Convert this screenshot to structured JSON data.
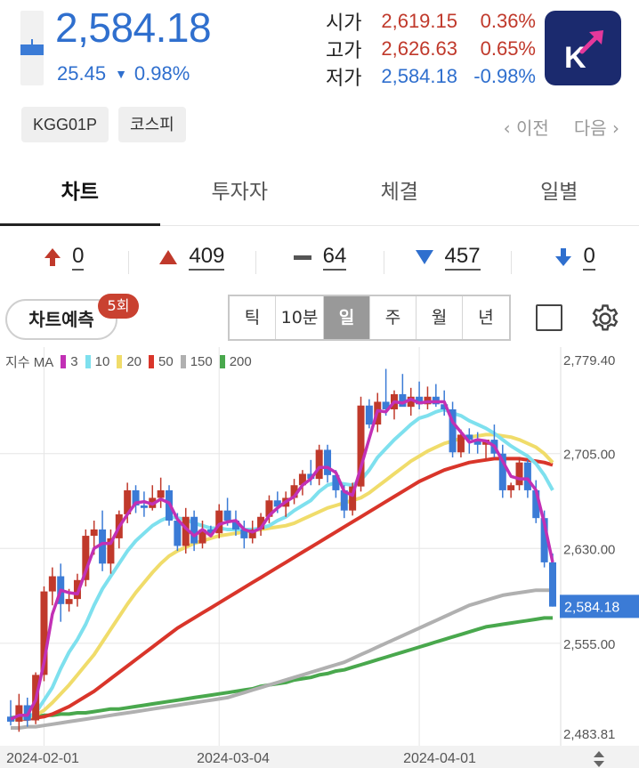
{
  "header": {
    "price": "2,584.18",
    "change_abs": "25.45",
    "change_dir_icon": "triangle-down",
    "change_pct": "0.98%",
    "ohl": [
      {
        "label": "시가",
        "value": "2,619.15",
        "pct": "0.36%",
        "tone": "red"
      },
      {
        "label": "고가",
        "value": "2,626.63",
        "pct": "0.65%",
        "tone": "red"
      },
      {
        "label": "저가",
        "value": "2,584.18",
        "pct": "-0.98%",
        "tone": "blue"
      }
    ],
    "logo_letter": "K"
  },
  "tags": [
    "KGG01P",
    "코스피"
  ],
  "nav": {
    "prev": "이전",
    "next": "다음"
  },
  "tabs": [
    "차트",
    "투자자",
    "체결",
    "일별"
  ],
  "counts": {
    "upper_limit": "0",
    "rise": "409",
    "flat": "64",
    "fall": "457",
    "lower_limit": "0"
  },
  "toolbar": {
    "predict_label": "차트예측",
    "predict_badge": "5회",
    "periods": [
      "틱",
      "10분",
      "일",
      "주",
      "월",
      "년"
    ],
    "active_period": "일"
  },
  "legend": {
    "prefix": "지수 MA",
    "items": [
      {
        "label": "3",
        "color": "#c230b5"
      },
      {
        "label": "10",
        "color": "#7ee0ee"
      },
      {
        "label": "20",
        "color": "#f0dc6a"
      },
      {
        "label": "50",
        "color": "#d9352a"
      },
      {
        "label": "150",
        "color": "#b0b0b0"
      },
      {
        "label": "200",
        "color": "#49a84d"
      }
    ]
  },
  "chart_data": {
    "type": "candlestick",
    "y_ticks": [
      "2,779.40",
      "2,705.00",
      "2,630.00",
      "2,555.00",
      "2,483.81"
    ],
    "y_tick_values": [
      2779.4,
      2705.0,
      2630.0,
      2555.0,
      2483.81
    ],
    "ylim": [
      2483.81,
      2779.4
    ],
    "x_ticks": [
      "2024-02-01",
      "2024-03-04",
      "2024-04-01"
    ],
    "last_price_label": "2,584.18",
    "last_price": 2584.18,
    "colors": {
      "up": "#c0392b",
      "down": "#3b7bd6",
      "grid": "#e6e6e6"
    },
    "candles": [
      [
        2497,
        2510,
        2490,
        2493
      ],
      [
        2493,
        2515,
        2485,
        2506
      ],
      [
        2506,
        2512,
        2489,
        2494
      ],
      [
        2494,
        2532,
        2491,
        2530
      ],
      [
        2530,
        2600,
        2525,
        2596
      ],
      [
        2596,
        2615,
        2585,
        2608
      ],
      [
        2608,
        2618,
        2572,
        2586
      ],
      [
        2586,
        2598,
        2580,
        2590
      ],
      [
        2590,
        2610,
        2584,
        2605
      ],
      [
        2605,
        2645,
        2600,
        2640
      ],
      [
        2640,
        2652,
        2625,
        2645
      ],
      [
        2645,
        2660,
        2612,
        2618
      ],
      [
        2618,
        2645,
        2610,
        2638
      ],
      [
        2638,
        2660,
        2630,
        2657
      ],
      [
        2657,
        2682,
        2650,
        2676
      ],
      [
        2676,
        2680,
        2658,
        2664
      ],
      [
        2664,
        2675,
        2655,
        2662
      ],
      [
        2662,
        2680,
        2660,
        2670
      ],
      [
        2670,
        2686,
        2662,
        2676
      ],
      [
        2676,
        2680,
        2648,
        2652
      ],
      [
        2652,
        2658,
        2628,
        2632
      ],
      [
        2632,
        2662,
        2626,
        2655
      ],
      [
        2655,
        2660,
        2628,
        2634
      ],
      [
        2634,
        2652,
        2630,
        2645
      ],
      [
        2645,
        2648,
        2640,
        2642
      ],
      [
        2642,
        2665,
        2638,
        2660
      ],
      [
        2660,
        2670,
        2648,
        2652
      ],
      [
        2652,
        2660,
        2640,
        2645
      ],
      [
        2645,
        2652,
        2630,
        2638
      ],
      [
        2638,
        2652,
        2634,
        2645
      ],
      [
        2645,
        2658,
        2640,
        2655
      ],
      [
        2655,
        2672,
        2650,
        2668
      ],
      [
        2668,
        2675,
        2658,
        2663
      ],
      [
        2663,
        2675,
        2655,
        2670
      ],
      [
        2670,
        2685,
        2665,
        2680
      ],
      [
        2680,
        2692,
        2672,
        2689
      ],
      [
        2689,
        2700,
        2680,
        2685
      ],
      [
        2685,
        2712,
        2680,
        2708
      ],
      [
        2708,
        2712,
        2682,
        2688
      ],
      [
        2688,
        2692,
        2670,
        2676
      ],
      [
        2676,
        2680,
        2654,
        2660
      ],
      [
        2660,
        2682,
        2656,
        2679
      ],
      [
        2679,
        2750,
        2675,
        2743
      ],
      [
        2743,
        2748,
        2725,
        2728
      ],
      [
        2728,
        2753,
        2722,
        2746
      ],
      [
        2746,
        2772,
        2735,
        2740
      ],
      [
        2740,
        2755,
        2732,
        2752
      ],
      [
        2752,
        2768,
        2744,
        2742
      ],
      [
        2742,
        2757,
        2735,
        2750
      ],
      [
        2750,
        2762,
        2740,
        2744
      ],
      [
        2744,
        2758,
        2740,
        2750
      ],
      [
        2750,
        2760,
        2742,
        2744
      ],
      [
        2744,
        2755,
        2735,
        2740
      ],
      [
        2740,
        2746,
        2702,
        2706
      ],
      [
        2706,
        2724,
        2702,
        2720
      ],
      [
        2720,
        2725,
        2705,
        2716
      ],
      [
        2716,
        2722,
        2705,
        2712
      ],
      [
        2712,
        2716,
        2700,
        2716
      ],
      [
        2716,
        2728,
        2702,
        2705
      ],
      [
        2705,
        2712,
        2670,
        2676
      ],
      [
        2676,
        2682,
        2670,
        2680
      ],
      [
        2680,
        2702,
        2676,
        2698
      ],
      [
        2698,
        2700,
        2670,
        2676
      ],
      [
        2676,
        2684,
        2650,
        2654
      ],
      [
        2654,
        2660,
        2615,
        2619
      ],
      [
        2619,
        2626,
        2584,
        2584
      ]
    ],
    "ma3": [
      2495,
      2498,
      2498,
      2510,
      2540,
      2578,
      2597,
      2595,
      2594,
      2612,
      2630,
      2634,
      2634,
      2647,
      2657,
      2666,
      2667,
      2665,
      2669,
      2666,
      2653,
      2646,
      2640,
      2645,
      2640,
      2649,
      2651,
      2652,
      2645,
      2643,
      2646,
      2656,
      2662,
      2667,
      2671,
      2680,
      2685,
      2694,
      2694,
      2690,
      2675,
      2672,
      2694,
      2717,
      2739,
      2738,
      2746,
      2745,
      2748,
      2745,
      2746,
      2746,
      2746,
      2730,
      2722,
      2714,
      2716,
      2715,
      2711,
      2699,
      2687,
      2685,
      2685,
      2676,
      2650,
      2619
    ],
    "ma10": [
      2495,
      2496,
      2496,
      2500,
      2510,
      2520,
      2535,
      2548,
      2558,
      2570,
      2585,
      2598,
      2608,
      2618,
      2628,
      2636,
      2642,
      2648,
      2652,
      2655,
      2654,
      2653,
      2650,
      2648,
      2646,
      2646,
      2645,
      2645,
      2645,
      2645,
      2646,
      2648,
      2652,
      2655,
      2660,
      2664,
      2668,
      2675,
      2680,
      2682,
      2681,
      2680,
      2684,
      2692,
      2702,
      2709,
      2716,
      2722,
      2728,
      2733,
      2735,
      2738,
      2740,
      2737,
      2735,
      2731,
      2728,
      2725,
      2721,
      2716,
      2711,
      2707,
      2703,
      2697,
      2688,
      2676
    ],
    "ma20": [
      2495,
      2495,
      2496,
      2498,
      2502,
      2508,
      2515,
      2522,
      2530,
      2538,
      2546,
      2556,
      2566,
      2576,
      2586,
      2595,
      2603,
      2611,
      2618,
      2624,
      2628,
      2631,
      2634,
      2636,
      2638,
      2640,
      2641,
      2642,
      2643,
      2644,
      2645,
      2646,
      2647,
      2648,
      2650,
      2653,
      2656,
      2659,
      2662,
      2664,
      2666,
      2668,
      2670,
      2674,
      2679,
      2684,
      2689,
      2694,
      2699,
      2703,
      2707,
      2710,
      2713,
      2715,
      2717,
      2718,
      2719,
      2720,
      2720,
      2719,
      2718,
      2716,
      2713,
      2710,
      2705,
      2698
    ],
    "ma50": [
      2495,
      2495,
      2495,
      2496,
      2497,
      2499,
      2502,
      2505,
      2509,
      2513,
      2517,
      2522,
      2527,
      2532,
      2537,
      2542,
      2547,
      2552,
      2557,
      2562,
      2567,
      2571,
      2575,
      2579,
      2583,
      2587,
      2591,
      2595,
      2599,
      2603,
      2607,
      2611,
      2615,
      2619,
      2623,
      2627,
      2631,
      2635,
      2639,
      2643,
      2647,
      2651,
      2655,
      2659,
      2663,
      2667,
      2671,
      2675,
      2679,
      2683,
      2686,
      2689,
      2692,
      2694,
      2696,
      2698,
      2699,
      2700,
      2701,
      2701,
      2701,
      2701,
      2700,
      2699,
      2698,
      2696
    ],
    "ma150": [
      2488,
      2488,
      2489,
      2489,
      2490,
      2491,
      2492,
      2493,
      2494,
      2495,
      2496,
      2497,
      2498,
      2499,
      2500,
      2501,
      2502,
      2503,
      2504,
      2505,
      2506,
      2507,
      2508,
      2509,
      2510,
      2511,
      2512,
      2514,
      2516,
      2518,
      2520,
      2522,
      2524,
      2526,
      2528,
      2530,
      2532,
      2534,
      2536,
      2538,
      2540,
      2543,
      2546,
      2549,
      2552,
      2555,
      2558,
      2561,
      2564,
      2567,
      2570,
      2573,
      2576,
      2579,
      2582,
      2585,
      2587,
      2589,
      2591,
      2593,
      2594,
      2595,
      2596,
      2597,
      2597,
      2597
    ],
    "ma200": [
      2496,
      2497,
      2497,
      2497,
      2498,
      2498,
      2499,
      2499,
      2500,
      2500,
      2501,
      2502,
      2503,
      2503,
      2504,
      2505,
      2506,
      2507,
      2508,
      2509,
      2510,
      2511,
      2512,
      2513,
      2514,
      2515,
      2516,
      2517,
      2518,
      2519,
      2521,
      2522,
      2523,
      2524,
      2526,
      2527,
      2528,
      2530,
      2531,
      2533,
      2534,
      2536,
      2538,
      2540,
      2542,
      2544,
      2546,
      2548,
      2550,
      2552,
      2554,
      2556,
      2558,
      2560,
      2562,
      2564,
      2566,
      2568,
      2569,
      2570,
      2571,
      2572,
      2573,
      2574,
      2575,
      2575
    ]
  }
}
